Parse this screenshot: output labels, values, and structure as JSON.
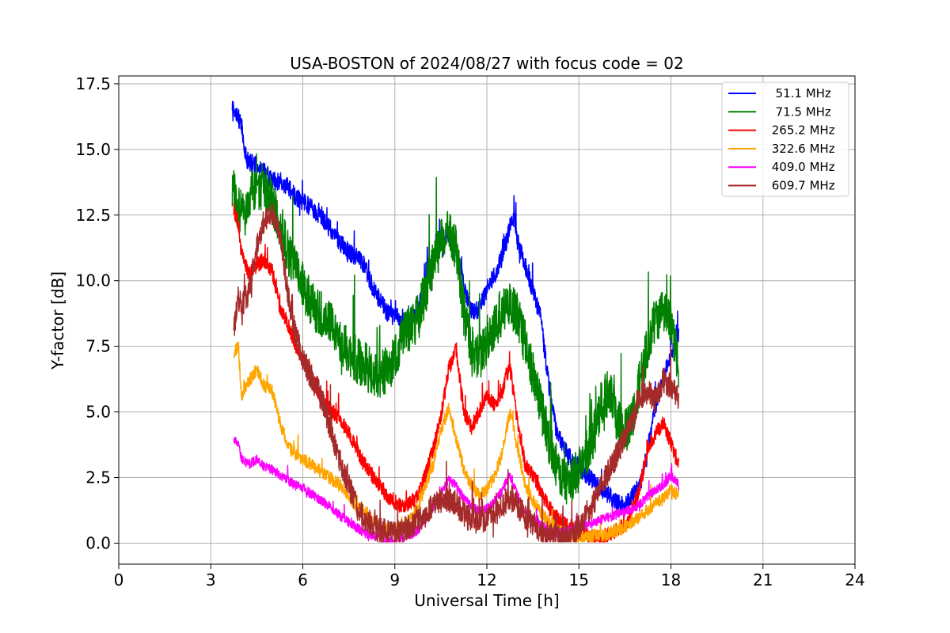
{
  "chart_data": {
    "type": "line",
    "title": "USA-BOSTON of 2024/08/27 with focus code = 02",
    "xlabel": "Universal Time [h]",
    "ylabel": "Y-factor [dB]",
    "xlim": [
      0,
      24
    ],
    "ylim": [
      -0.8,
      17.8
    ],
    "xticks": [
      0,
      3,
      6,
      9,
      12,
      15,
      18,
      21,
      24
    ],
    "xtick_labels": [
      "0",
      "3",
      "6",
      "9",
      "12",
      "15",
      "18",
      "21",
      "24"
    ],
    "yticks": [
      0,
      2.5,
      5,
      7.5,
      10,
      12.5,
      15,
      17.5
    ],
    "ytick_labels": [
      "0.0",
      "2.5",
      "5.0",
      "7.5",
      "10.0",
      "12.5",
      "15.0",
      "17.5"
    ],
    "grid": true,
    "legend_position": "top-right",
    "series": [
      {
        "name": "  51.1 MHz",
        "color": "#0000ff",
        "x": [
          3.7,
          3.8,
          3.9,
          4.0,
          4.1,
          4.25,
          4.5,
          4.75,
          5.0,
          5.25,
          5.5,
          5.75,
          6.0,
          6.25,
          6.5,
          6.75,
          7.0,
          7.25,
          7.5,
          7.75,
          8.0,
          8.25,
          8.5,
          8.75,
          9.0,
          9.25,
          9.5,
          9.75,
          10.0,
          10.25,
          10.5,
          10.75,
          11.0,
          11.25,
          11.5,
          11.75,
          12.0,
          12.25,
          12.5,
          12.75,
          12.9,
          13.0,
          13.25,
          13.5,
          13.75,
          14.0,
          14.25,
          14.5,
          14.75,
          15.0,
          15.25,
          15.5,
          15.75,
          16.0,
          16.25,
          16.5,
          16.75,
          17.0,
          17.25,
          17.5,
          17.75,
          18.0,
          18.25
        ],
        "y": [
          16.8,
          16.5,
          16.2,
          16.0,
          14.8,
          14.5,
          14.4,
          14.2,
          13.8,
          13.8,
          13.6,
          13.2,
          13.0,
          12.8,
          12.5,
          12.2,
          11.8,
          11.4,
          11.1,
          10.9,
          10.6,
          9.8,
          9.3,
          8.8,
          8.6,
          8.6,
          8.4,
          8.9,
          9.9,
          10.9,
          11.6,
          11.8,
          11.2,
          9.8,
          8.8,
          8.9,
          9.7,
          10.2,
          10.9,
          12.0,
          12.5,
          11.5,
          10.6,
          9.6,
          8.6,
          6.2,
          4.3,
          3.6,
          3.2,
          2.9,
          2.6,
          2.3,
          2.0,
          1.8,
          1.5,
          1.4,
          1.8,
          2.2,
          3.6,
          5.2,
          6.3,
          7.2,
          8.0
        ],
        "noise": 0.35
      },
      {
        "name": "  71.5 MHz",
        "color": "#008000",
        "x": [
          3.7,
          3.9,
          4.1,
          4.3,
          4.5,
          4.75,
          5.0,
          5.25,
          5.5,
          5.75,
          6.0,
          6.25,
          6.5,
          6.75,
          7.0,
          7.25,
          7.5,
          7.75,
          8.0,
          8.25,
          8.5,
          8.75,
          9.0,
          9.25,
          9.5,
          9.75,
          10.0,
          10.25,
          10.5,
          10.75,
          11.0,
          11.25,
          11.5,
          11.75,
          12.0,
          12.25,
          12.5,
          12.75,
          13.0,
          13.25,
          13.5,
          13.75,
          14.0,
          14.25,
          14.5,
          14.75,
          15.0,
          15.25,
          15.5,
          15.75,
          16.0,
          16.25,
          16.5,
          16.75,
          17.0,
          17.25,
          17.5,
          17.75,
          18.0,
          18.25
        ],
        "y": [
          13.5,
          12.8,
          12.4,
          13.4,
          13.6,
          13.6,
          13.0,
          12.2,
          11.2,
          10.4,
          9.8,
          9.2,
          8.8,
          8.6,
          8.3,
          7.7,
          7.3,
          7.0,
          6.8,
          6.5,
          6.4,
          6.6,
          7.0,
          7.8,
          8.2,
          8.6,
          9.6,
          10.6,
          11.4,
          11.8,
          11.2,
          8.8,
          7.2,
          7.0,
          7.6,
          8.2,
          8.8,
          9.2,
          8.6,
          7.6,
          6.4,
          5.2,
          4.0,
          3.0,
          2.4,
          2.4,
          2.8,
          3.4,
          4.2,
          5.4,
          5.8,
          4.6,
          4.2,
          4.8,
          6.2,
          7.6,
          8.6,
          8.8,
          8.4,
          6.8
        ],
        "noise": 0.9
      },
      {
        "name": " 265.2 MHz",
        "color": "#ff0000",
        "x": [
          3.75,
          3.9,
          4.0,
          4.25,
          4.5,
          4.75,
          5.0,
          5.25,
          5.5,
          5.75,
          6.0,
          6.25,
          6.5,
          6.75,
          7.0,
          7.25,
          7.5,
          7.75,
          8.0,
          8.25,
          8.5,
          8.75,
          9.0,
          9.25,
          9.5,
          9.75,
          10.0,
          10.25,
          10.5,
          10.75,
          11.0,
          11.25,
          11.5,
          11.75,
          12.0,
          12.25,
          12.5,
          12.75,
          13.0,
          13.25,
          13.5,
          13.75,
          14.0,
          14.25,
          14.5,
          14.75,
          15.0,
          15.25,
          15.5,
          15.75,
          16.0,
          16.25,
          16.5,
          16.75,
          17.0,
          17.25,
          17.5,
          17.75,
          18.0,
          18.25
        ],
        "y": [
          12.7,
          12.2,
          11.0,
          10.2,
          10.6,
          10.8,
          10.4,
          9.0,
          8.4,
          7.6,
          7.0,
          6.4,
          5.8,
          5.2,
          5.0,
          4.6,
          4.2,
          3.6,
          3.0,
          2.6,
          2.2,
          1.8,
          1.6,
          1.4,
          1.5,
          1.8,
          2.6,
          3.6,
          4.8,
          6.6,
          7.4,
          5.0,
          4.4,
          5.0,
          5.6,
          5.2,
          5.8,
          6.8,
          4.6,
          3.0,
          2.6,
          2.0,
          1.4,
          1.0,
          0.8,
          0.6,
          0.4,
          0.3,
          0.2,
          0.2,
          0.3,
          0.5,
          0.7,
          1.2,
          2.2,
          3.6,
          4.2,
          4.6,
          3.8,
          3.0
        ],
        "noise": 0.3
      },
      {
        "name": " 322.6 MHz",
        "color": "#ffa500",
        "x": [
          3.75,
          3.9,
          4.0,
          4.25,
          4.5,
          4.75,
          5.0,
          5.25,
          5.5,
          5.75,
          6.0,
          6.25,
          6.5,
          6.75,
          7.0,
          7.25,
          7.5,
          7.75,
          8.0,
          8.25,
          8.5,
          8.75,
          9.0,
          9.25,
          9.5,
          9.75,
          10.0,
          10.25,
          10.5,
          10.75,
          11.0,
          11.25,
          11.5,
          11.75,
          12.0,
          12.25,
          12.5,
          12.75,
          13.0,
          13.25,
          13.5,
          13.75,
          14.0,
          14.25,
          14.5,
          14.75,
          15.0,
          15.25,
          15.5,
          15.75,
          16.0,
          16.25,
          16.5,
          16.75,
          17.0,
          17.25,
          17.5,
          17.75,
          18.0,
          18.25
        ],
        "y": [
          7.2,
          7.5,
          5.6,
          6.2,
          6.6,
          6.0,
          5.8,
          4.6,
          3.8,
          3.4,
          3.2,
          3.0,
          2.8,
          2.6,
          2.4,
          2.2,
          1.8,
          1.4,
          1.2,
          0.9,
          0.6,
          0.5,
          0.5,
          0.6,
          0.9,
          1.3,
          2.2,
          3.0,
          4.2,
          5.2,
          4.0,
          2.8,
          2.2,
          1.8,
          2.0,
          2.6,
          3.4,
          5.0,
          3.6,
          2.2,
          1.6,
          1.2,
          0.8,
          0.6,
          0.4,
          0.3,
          0.2,
          0.2,
          0.3,
          0.3,
          0.4,
          0.5,
          0.6,
          0.8,
          1.0,
          1.3,
          1.5,
          1.7,
          2.0,
          1.8
        ],
        "noise": 0.25
      },
      {
        "name": " 409.0 MHz",
        "color": "#ff00ff",
        "x": [
          3.75,
          3.9,
          4.0,
          4.25,
          4.5,
          4.75,
          5.0,
          5.25,
          5.5,
          5.75,
          6.0,
          6.25,
          6.5,
          6.75,
          7.0,
          7.25,
          7.5,
          7.75,
          8.0,
          8.25,
          8.5,
          8.75,
          9.0,
          9.25,
          9.5,
          9.75,
          10.0,
          10.25,
          10.5,
          10.75,
          11.0,
          11.25,
          11.5,
          11.75,
          12.0,
          12.25,
          12.5,
          12.75,
          13.0,
          13.25,
          13.5,
          13.75,
          14.0,
          14.25,
          14.5,
          14.75,
          15.0,
          15.25,
          15.5,
          15.75,
          16.0,
          16.25,
          16.5,
          16.75,
          17.0,
          17.25,
          17.5,
          17.75,
          18.0,
          18.25
        ],
        "y": [
          4.0,
          3.8,
          3.2,
          3.0,
          3.2,
          2.9,
          2.8,
          2.6,
          2.4,
          2.2,
          2.1,
          1.9,
          1.7,
          1.5,
          1.3,
          1.0,
          0.8,
          0.6,
          0.4,
          0.3,
          0.2,
          0.1,
          0.1,
          0.2,
          0.3,
          0.5,
          0.9,
          1.4,
          1.9,
          2.4,
          2.2,
          1.7,
          1.4,
          1.2,
          1.3,
          1.6,
          2.0,
          2.6,
          1.8,
          1.2,
          0.9,
          0.7,
          0.5,
          0.4,
          0.4,
          0.5,
          0.6,
          0.7,
          0.8,
          0.9,
          1.0,
          1.1,
          1.2,
          1.3,
          1.5,
          1.8,
          2.0,
          2.2,
          2.6,
          2.2
        ],
        "noise": 0.18
      },
      {
        "name": " 609.7 MHz",
        "color": "#a52a2a",
        "x": [
          3.75,
          3.9,
          4.0,
          4.25,
          4.5,
          4.75,
          5.0,
          5.25,
          5.5,
          5.75,
          6.0,
          6.25,
          6.5,
          6.75,
          7.0,
          7.25,
          7.5,
          7.75,
          8.0,
          8.25,
          8.5,
          8.75,
          9.0,
          9.25,
          9.5,
          9.75,
          10.0,
          10.25,
          10.5,
          10.75,
          11.0,
          11.25,
          11.5,
          11.75,
          12.0,
          12.25,
          12.5,
          12.75,
          13.0,
          13.25,
          13.5,
          13.75,
          14.0,
          14.25,
          14.5,
          14.75,
          15.0,
          15.25,
          15.5,
          15.75,
          16.0,
          16.25,
          16.5,
          16.75,
          17.0,
          17.25,
          17.5,
          17.75,
          18.0,
          18.25
        ],
        "y": [
          8.2,
          9.4,
          9.0,
          9.6,
          11.2,
          12.4,
          12.6,
          11.8,
          9.6,
          8.0,
          7.0,
          6.4,
          5.8,
          5.0,
          4.0,
          3.0,
          2.2,
          1.4,
          0.9,
          0.7,
          0.5,
          0.4,
          0.4,
          0.5,
          0.6,
          0.8,
          1.1,
          1.4,
          1.6,
          1.7,
          1.5,
          1.1,
          0.9,
          0.8,
          0.9,
          1.1,
          1.4,
          1.8,
          1.4,
          1.0,
          0.7,
          0.5,
          0.3,
          0.2,
          0.2,
          0.3,
          0.6,
          1.0,
          1.6,
          2.2,
          2.8,
          3.4,
          4.0,
          4.6,
          5.6,
          5.8,
          5.4,
          6.2,
          6.0,
          5.6
        ],
        "noise": 0.5
      }
    ]
  }
}
